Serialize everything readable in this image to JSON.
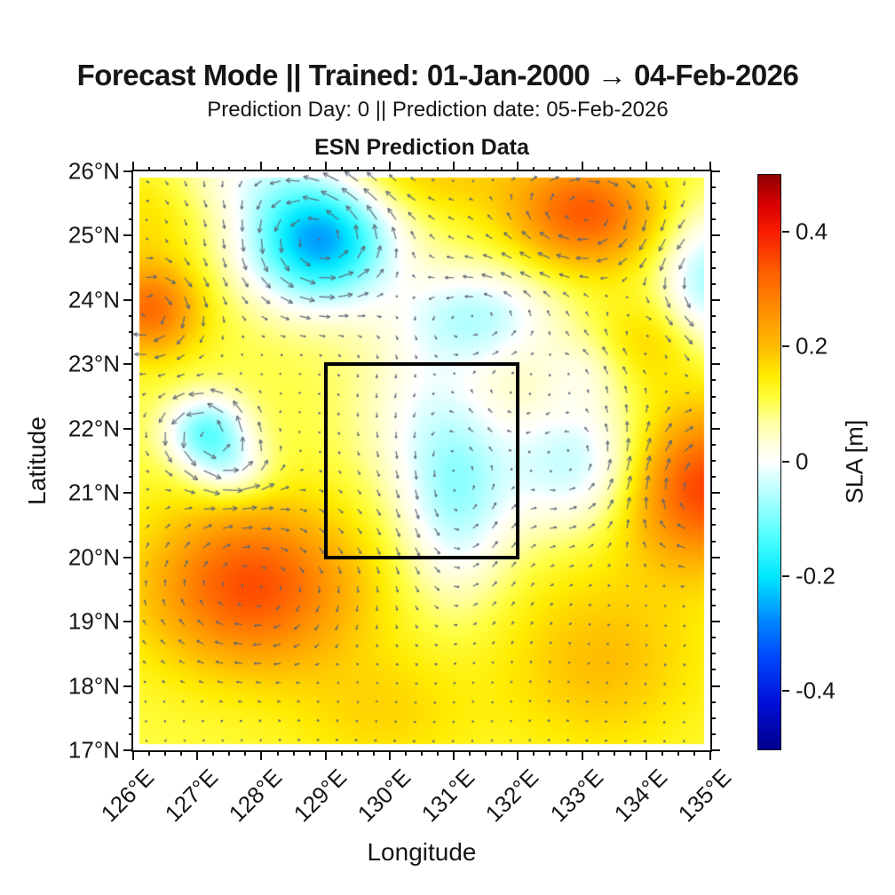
{
  "figure": {
    "title": "Forecast Mode || Trained: 01-Jan-2000 → 04-Feb-2026",
    "subtitle": "Prediction Day: 0 || Prediction date: 05-Feb-2026"
  },
  "chart_data": {
    "type": "heatmap",
    "title": "ESN Prediction Data",
    "xlabel": "Longitude",
    "ylabel": "Latitude",
    "xlim": [
      126,
      135
    ],
    "ylim": [
      17,
      26
    ],
    "x_tick_values": [
      126,
      127,
      128,
      129,
      130,
      131,
      132,
      133,
      134,
      135
    ],
    "x_tick_labels": [
      "126°E",
      "127°E",
      "128°E",
      "129°E",
      "130°E",
      "131°E",
      "132°E",
      "133°E",
      "134°E",
      "135°E"
    ],
    "y_tick_values": [
      17,
      18,
      19,
      20,
      21,
      22,
      23,
      24,
      25,
      26
    ],
    "y_tick_labels": [
      "17°N",
      "18°N",
      "19°N",
      "20°N",
      "21°N",
      "22°N",
      "23°N",
      "24°N",
      "25°N",
      "26°N"
    ],
    "minor_tick_step": 0.25,
    "grid": false,
    "data_extent": {
      "lon": [
        126.1,
        134.9
      ],
      "lat": [
        17.1,
        25.9
      ]
    },
    "background_sla": 0.11,
    "eddies": [
      {
        "lon": 128.9,
        "lat": 24.95,
        "amp": -0.37,
        "sx": 0.8,
        "sy": 0.7
      },
      {
        "lon": 126.25,
        "lat": 23.85,
        "amp": 0.2,
        "sx": 0.55,
        "sy": 0.5
      },
      {
        "lon": 127.15,
        "lat": 21.95,
        "amp": -0.22,
        "sx": 0.45,
        "sy": 0.4
      },
      {
        "lon": 127.55,
        "lat": 21.35,
        "amp": -0.11,
        "sx": 0.45,
        "sy": 0.35
      },
      {
        "lon": 127.85,
        "lat": 19.55,
        "amp": 0.24,
        "sx": 1.15,
        "sy": 0.9
      },
      {
        "lon": 133.05,
        "lat": 25.35,
        "amp": 0.22,
        "sx": 0.8,
        "sy": 0.6
      },
      {
        "lon": 130.3,
        "lat": 25.95,
        "amp": 0.08,
        "sx": 1.3,
        "sy": 0.5
      },
      {
        "lon": 131.4,
        "lat": 23.75,
        "amp": -0.15,
        "sx": 0.85,
        "sy": 0.55
      },
      {
        "lon": 135.0,
        "lat": 24.3,
        "amp": -0.18,
        "sx": 0.55,
        "sy": 0.75
      },
      {
        "lon": 132.95,
        "lat": 21.45,
        "amp": -0.17,
        "sx": 0.85,
        "sy": 0.75
      },
      {
        "lon": 134.9,
        "lat": 21.1,
        "amp": 0.26,
        "sx": 0.95,
        "sy": 0.85
      },
      {
        "lon": 131.05,
        "lat": 20.9,
        "amp": -0.16,
        "sx": 0.6,
        "sy": 1.05
      },
      {
        "lon": 130.45,
        "lat": 22.3,
        "amp": -0.08,
        "sx": 0.75,
        "sy": 1.0
      },
      {
        "lon": 127.9,
        "lat": 25.95,
        "amp": -0.08,
        "sx": 0.9,
        "sy": 0.45
      },
      {
        "lon": 134.1,
        "lat": 23.35,
        "amp": 0.07,
        "sx": 0.6,
        "sy": 0.5
      },
      {
        "lon": 133.3,
        "lat": 18.4,
        "amp": 0.09,
        "sx": 1.1,
        "sy": 1.0
      },
      {
        "lon": 129.9,
        "lat": 17.6,
        "amp": 0.06,
        "sx": 1.0,
        "sy": 0.7
      },
      {
        "lon": 126.2,
        "lat": 25.3,
        "amp": 0.05,
        "sx": 0.6,
        "sy": 0.6
      },
      {
        "lon": 133.0,
        "lat": 22.9,
        "amp": -0.06,
        "sx": 0.5,
        "sy": 0.4
      }
    ],
    "quiver": {
      "spacing_deg": 0.3,
      "color": "rgba(92,102,118,0.9)",
      "scale": 60,
      "max_len": 26
    },
    "box_region": {
      "lon": [
        129,
        132
      ],
      "lat": [
        20,
        23
      ],
      "color": "#000000",
      "line_width": 4
    },
    "colorbar": {
      "label": "SLA [m]",
      "range": [
        -0.5,
        0.5
      ],
      "tick_values": [
        0.4,
        0.2,
        0,
        -0.2,
        -0.4
      ],
      "tick_labels": [
        "0.4",
        "0.2",
        "0",
        "-0.2",
        "-0.4"
      ],
      "stops": [
        [
          -0.5,
          0,
          0,
          144
        ],
        [
          -0.42,
          0,
          16,
          216
        ],
        [
          -0.34,
          0,
          72,
          255
        ],
        [
          -0.27,
          0,
          144,
          255
        ],
        [
          -0.2,
          0,
          232,
          255
        ],
        [
          -0.13,
          80,
          255,
          255
        ],
        [
          -0.06,
          176,
          255,
          255
        ],
        [
          -0.015,
          232,
          255,
          255
        ],
        [
          0.0,
          255,
          255,
          255
        ],
        [
          0.03,
          255,
          255,
          224
        ],
        [
          0.07,
          255,
          255,
          160
        ],
        [
          0.11,
          255,
          255,
          64
        ],
        [
          0.15,
          255,
          236,
          0
        ],
        [
          0.2,
          255,
          190,
          0
        ],
        [
          0.27,
          255,
          140,
          0
        ],
        [
          0.33,
          255,
          96,
          0
        ],
        [
          0.4,
          250,
          30,
          0
        ],
        [
          0.45,
          216,
          0,
          0
        ],
        [
          0.5,
          144,
          0,
          0
        ]
      ]
    }
  }
}
